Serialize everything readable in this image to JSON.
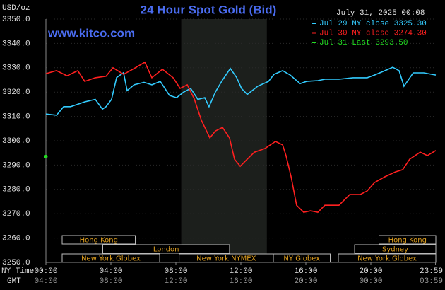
{
  "chart_data": {
    "type": "line",
    "title": "24 Hour Spot Gold (Bid)",
    "subtitle": "www.kitco.com",
    "timestamp": "July 31, 2025 00:08",
    "y_unit": "USD/oz",
    "x_row_names": [
      "NY Time",
      "GMT"
    ],
    "xlim": [
      0,
      24
    ],
    "xticks": [
      {
        "value": 0,
        "label": "00:00"
      },
      {
        "value": 4,
        "label": "04:00"
      },
      {
        "value": 8,
        "label": "08:00"
      },
      {
        "value": 12,
        "label": "12:00"
      },
      {
        "value": 16,
        "label": "16:00"
      },
      {
        "value": 20,
        "label": "20:00"
      },
      {
        "value": 23.98,
        "label": "23:59"
      }
    ],
    "xticks_gmt": [
      "04:00",
      "08:00",
      "12:00",
      "16:00",
      "20:00",
      "00:00",
      "03:59"
    ],
    "ylim": [
      3250,
      3350
    ],
    "yticks": [
      {
        "value": 3250,
        "label": "3250.0"
      },
      {
        "value": 3260,
        "label": "3260.0"
      },
      {
        "value": 3270,
        "label": "3270.0"
      },
      {
        "value": 3280,
        "label": "3280.0"
      },
      {
        "value": 3290,
        "label": "3290.0"
      },
      {
        "value": 3300,
        "label": "3300.0"
      },
      {
        "value": 3310,
        "label": "3310.0"
      },
      {
        "value": 3320,
        "label": "3320.0"
      },
      {
        "value": 3330,
        "label": "3330.0"
      },
      {
        "value": 3340,
        "label": "3340.0"
      },
      {
        "value": 3350,
        "label": "3350.0"
      }
    ],
    "grid": true,
    "shade": [
      8.33,
      13.6
    ],
    "sessions": [
      [
        {
          "label": "Hong Kong",
          "start": 1,
          "end": 5.5
        },
        {
          "label": "Hong Kong",
          "start": 20.5,
          "end": 24
        }
      ],
      [
        {
          "label": "London",
          "start": 3.5,
          "end": 11.3
        },
        {
          "label": "Sydney",
          "start": 19,
          "end": 24
        }
      ],
      [
        {
          "label": "New York Globex",
          "start": 1,
          "end": 7
        },
        {
          "label": "New York NYMEX",
          "start": 8.2,
          "end": 14
        },
        {
          "label": "NY Globex",
          "start": 14,
          "end": 17.5
        },
        {
          "label": "New York Globex",
          "start": 18,
          "end": 24
        }
      ]
    ],
    "series": [
      {
        "name": "Jul 29 NY close 3325.30",
        "color": "#33ccff",
        "x": [
          0,
          0.65,
          1.09,
          1.52,
          1.96,
          2.39,
          3.04,
          3.48,
          3.7,
          4.04,
          4.35,
          4.78,
          5.0,
          5.43,
          6.04,
          6.52,
          7.04,
          7.61,
          8.04,
          8.48,
          8.91,
          9.35,
          9.78,
          10.04,
          10.43,
          10.87,
          11.35,
          11.74,
          12.04,
          12.39,
          13.04,
          13.7,
          14.04,
          14.57,
          15.04,
          15.65,
          16.04,
          16.74,
          17.17,
          18.04,
          18.91,
          19.78,
          20.22,
          20.65,
          21.35,
          21.74,
          22.04,
          22.61,
          23.26,
          24.0
        ],
        "values": [
          3311,
          3310.5,
          3314,
          3314,
          3315,
          3316,
          3317,
          3313,
          3314,
          3317,
          3326,
          3328,
          3320.6,
          3323,
          3324,
          3323,
          3324.4,
          3318.6,
          3317.7,
          3320,
          3321.5,
          3317,
          3317.7,
          3314,
          3320,
          3325,
          3329.7,
          3326,
          3321.5,
          3319,
          3322.4,
          3324.4,
          3327.3,
          3328.8,
          3327,
          3323.5,
          3324.4,
          3324.7,
          3325.3,
          3325.3,
          3325.9,
          3325.9,
          3327,
          3328.2,
          3330.2,
          3328.8,
          3322.4,
          3327.9,
          3327.9,
          3327
        ]
      },
      {
        "name": "Jul 30 NY close 3274.30",
        "color": "#ff2020",
        "x": [
          0,
          0.65,
          1.3,
          1.96,
          2.39,
          3.04,
          3.7,
          4.13,
          4.78,
          5.43,
          6.09,
          6.52,
          7.17,
          7.83,
          8.26,
          8.7,
          9.13,
          9.57,
          10.09,
          10.43,
          10.87,
          11.3,
          11.61,
          11.96,
          12.39,
          12.83,
          13.48,
          14.13,
          14.57,
          14.78,
          15.09,
          15.43,
          15.87,
          16.3,
          16.74,
          17.17,
          18.04,
          18.7,
          19.35,
          19.78,
          20.22,
          20.87,
          21.52,
          21.96,
          22.39,
          23.04,
          23.48,
          24.0
        ],
        "values": [
          3327.6,
          3328.8,
          3326.7,
          3328.8,
          3324.4,
          3325.9,
          3326.5,
          3330,
          3327.3,
          3329.7,
          3332.3,
          3325.9,
          3329.4,
          3325.9,
          3321.5,
          3323,
          3317.2,
          3308.4,
          3301.2,
          3304,
          3305.5,
          3301.2,
          3292.4,
          3289.5,
          3292.4,
          3295.3,
          3296.8,
          3299.7,
          3298.3,
          3293.9,
          3285.2,
          3273.5,
          3270.6,
          3271.2,
          3270.6,
          3273.5,
          3273.5,
          3277.9,
          3277.9,
          3279.4,
          3282.8,
          3285.2,
          3287.2,
          3288.1,
          3292.4,
          3295.3,
          3293.9,
          3296
        ]
      },
      {
        "name": "Jul 31 Last 3293.50",
        "color": "#22dd22",
        "x": [
          0
        ],
        "values": [
          3293.5
        ]
      }
    ]
  }
}
